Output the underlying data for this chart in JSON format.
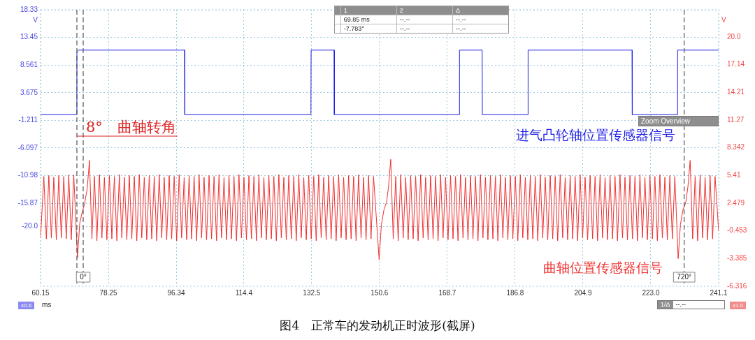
{
  "chart_data": {
    "type": "line",
    "title": "图4　正常车的发动机正时波形(截屏)",
    "xlabel": "ms",
    "ylabel": "V",
    "y2label": "V",
    "xlim": [
      60.15,
      241.1
    ],
    "xticks": [
      60.15,
      78.25,
      96.34,
      114.4,
      132.5,
      150.6,
      168.7,
      186.8,
      204.9,
      {
        "value": 223.0,
        "label": "223.0"
      },
      241.1
    ],
    "ylim": [
      -30.53,
      18.33
    ],
    "yticks": [
      18.33,
      13.45,
      8.561,
      3.675,
      -1.211,
      -6.097,
      -10.98,
      -15.87,
      {
        "value": -20.0,
        "label": "-20.0"
      }
    ],
    "y2lim": [
      -6.316,
      22.93
    ],
    "y2ticks": [
      {
        "value": 20.0,
        "label": "20.0"
      },
      17.14,
      14.21,
      11.27,
      8.342,
      5.41,
      2.479,
      -0.453,
      -3.385,
      -6.316
    ],
    "grid": true,
    "marker": "none",
    "ref_lines": [
      {
        "axis": "x",
        "value": 69.85,
        "label": null,
        "color": "#555555",
        "line_style": "dashed"
      },
      {
        "axis": "x",
        "value": 71.53,
        "label": null,
        "color": "#555555",
        "line_style": "dashed"
      },
      {
        "axis": "x",
        "value": 231.9,
        "label": null,
        "color": "#555555",
        "line_style": "dashed"
      }
    ],
    "annotations": [
      "8°　曲轴转角",
      "1",
      "2",
      "Δ",
      "69.85 ms",
      "--.--",
      "--.--",
      "-7.783°",
      "--.--",
      "--.--",
      "Zoom Overview",
      "x0.6",
      "x1.0",
      "1/Δ",
      "--.--",
      "0°",
      "720°"
    ],
    "series": [
      {
        "name": "进气凸轮轴位置传感器信号",
        "color": "#1f1fe6",
        "x": [
          60.15,
          69.75,
          69.85,
          70.3,
          98.6,
          98.65,
          132.3,
          132.35,
          138.5,
          138.55,
          171.9,
          171.95,
          178.0,
          178.05,
          190.2,
          190.25,
          218.0,
          218.05,
          230.1,
          230.15,
          241.1
        ],
        "values": [
          -0.2,
          -0.2,
          10.9,
          11.2,
          11.2,
          -0.2,
          -0.2,
          11.2,
          11.2,
          -0.2,
          -0.2,
          11.2,
          11.2,
          -0.2,
          -0.2,
          11.2,
          11.2,
          -0.2,
          -0.2,
          11.2,
          11.2
        ]
      },
      {
        "name": "曲轴位置传感器信号",
        "color": "#f03030",
        "axis": "y2",
        "x": [
          60.15,
          61.03,
          61.7,
          62.36,
          63.03,
          63.69,
          64.36,
          65.02,
          65.69,
          66.35,
          67.02,
          67.68,
          68.35,
          69.01,
          70.0,
          70.6,
          71.3,
          71.9,
          72.6,
          73.2,
          73.86,
          74.53,
          75.19,
          75.86,
          76.52,
          77.19,
          77.85,
          78.52,
          79.18,
          79.85,
          80.51,
          81.18,
          81.84,
          82.51,
          83.17,
          83.84,
          84.5,
          85.17,
          85.83,
          86.5,
          87.16,
          87.83,
          88.49,
          89.16,
          89.82,
          90.49,
          91.15,
          91.82,
          92.48,
          93.15,
          93.81,
          94.48,
          95.14,
          95.81,
          96.47,
          97.14,
          97.8,
          98.47,
          99.13,
          99.8,
          100.46,
          101.13,
          101.79,
          102.46,
          103.12,
          103.79,
          104.45,
          105.12,
          105.78,
          106.45,
          107.11,
          107.78,
          108.44,
          109.11,
          109.77,
          110.44,
          111.1,
          111.77,
          112.43,
          113.1,
          113.76,
          114.43,
          115.09,
          115.76,
          116.42,
          117.09,
          117.75,
          118.42,
          119.08,
          119.75,
          120.41,
          121.08,
          121.74,
          122.41,
          123.07,
          123.74,
          124.4,
          125.07,
          125.73,
          126.4,
          127.06,
          127.73,
          128.39,
          129.06,
          129.72,
          130.39,
          131.05,
          131.72,
          132.38,
          133.05,
          133.71,
          134.38,
          135.04,
          135.71,
          136.37,
          137.04,
          137.7,
          138.37,
          139.03,
          139.7,
          140.36,
          141.03,
          141.69,
          142.36,
          143.02,
          143.69,
          144.35,
          145.02,
          145.68,
          146.35,
          147.01,
          147.68,
          148.34,
          149.01,
          150.5,
          151.1,
          151.8,
          152.5,
          153.0,
          153.6,
          154.26,
          154.93,
          155.59,
          156.26,
          156.92,
          157.59,
          158.25,
          158.92,
          159.58,
          160.25,
          160.91,
          161.58,
          162.24,
          162.91,
          163.57,
          164.24,
          164.9,
          165.57,
          166.23,
          166.9,
          167.56,
          168.23,
          168.89,
          169.56,
          170.22,
          170.89,
          171.55,
          172.22,
          172.88,
          173.55,
          174.21,
          174.88,
          175.54,
          176.21,
          176.87,
          177.54,
          178.2,
          178.87,
          179.53,
          180.2,
          180.86,
          181.53,
          182.19,
          182.86,
          183.52,
          184.19,
          184.85,
          185.52,
          186.18,
          186.85,
          187.51,
          188.18,
          188.84,
          189.51,
          190.17,
          190.84,
          191.5,
          192.17,
          192.83,
          193.5,
          194.16,
          194.83,
          195.49,
          196.16,
          196.82,
          197.49,
          198.15,
          198.82,
          199.48,
          200.15,
          200.81,
          201.48,
          202.14,
          202.81,
          203.47,
          204.14,
          204.8,
          205.47,
          206.13,
          206.8,
          207.46,
          208.13,
          208.79,
          209.46,
          210.12,
          210.79,
          211.45,
          212.12,
          212.78,
          213.45,
          214.11,
          214.78,
          215.44,
          216.11,
          216.77,
          217.44,
          218.1,
          218.77,
          219.43,
          220.1,
          220.76,
          221.43,
          222.09,
          222.76,
          223.42,
          224.09,
          224.75,
          225.42,
          226.08,
          226.75,
          227.41,
          228.08,
          228.74,
          229.41,
          230.3,
          230.9,
          231.6,
          232.3,
          232.9,
          233.5,
          234.16,
          234.83,
          235.49,
          236.16,
          236.82,
          237.49,
          238.15,
          238.82,
          239.48,
          240.15,
          241.1
        ],
        "values": [
          -1.2,
          5.3,
          -1.3,
          5.4,
          -1.2,
          5.2,
          -1.4,
          5.4,
          -1.2,
          5.3,
          -1.3,
          5.5,
          -1.4,
          5.5,
          -3.3,
          0.3,
          1.6,
          2.4,
          4.0,
          7.0,
          -1.3,
          5.3,
          -1.5,
          5.5,
          -1.2,
          5.2,
          -1.4,
          5.4,
          -1.3,
          5.3,
          -1.5,
          5.5,
          -1.2,
          5.2,
          -1.4,
          5.4,
          -1.3,
          5.3,
          -1.5,
          5.5,
          -1.2,
          5.2,
          -1.4,
          5.4,
          -1.3,
          5.3,
          -1.5,
          5.5,
          -1.2,
          5.2,
          -1.4,
          5.4,
          -1.3,
          5.3,
          -1.5,
          5.5,
          -1.2,
          5.2,
          -1.4,
          5.4,
          -1.3,
          5.3,
          -1.5,
          5.5,
          -1.2,
          5.2,
          -1.4,
          5.4,
          -1.3,
          5.3,
          -1.5,
          5.5,
          -1.2,
          5.2,
          -1.4,
          5.4,
          -1.3,
          5.3,
          -1.5,
          5.5,
          -1.2,
          5.2,
          -1.4,
          5.4,
          -1.3,
          5.3,
          -1.5,
          5.5,
          -1.2,
          5.2,
          -1.4,
          5.4,
          -1.3,
          5.3,
          -1.5,
          5.5,
          -1.2,
          5.2,
          -1.4,
          5.4,
          -1.3,
          5.3,
          -1.5,
          5.5,
          -1.2,
          5.2,
          -1.4,
          5.4,
          -1.3,
          5.3,
          -1.5,
          5.5,
          -1.2,
          5.2,
          -1.4,
          5.4,
          -1.3,
          5.3,
          -1.5,
          5.5,
          -1.2,
          5.2,
          -1.4,
          5.4,
          -1.3,
          5.3,
          -1.5,
          5.5,
          -1.2,
          5.2,
          -1.4,
          5.4,
          -1.3,
          5.3,
          -3.5,
          0.2,
          1.8,
          2.6,
          4.2,
          7.1,
          -1.3,
          5.3,
          -1.5,
          5.5,
          -1.2,
          5.2,
          -1.4,
          5.4,
          -1.3,
          5.3,
          -1.5,
          5.5,
          -1.2,
          5.2,
          -1.4,
          5.4,
          -1.3,
          5.3,
          -1.5,
          5.5,
          -1.2,
          5.2,
          -1.4,
          5.4,
          -1.3,
          5.3,
          -1.5,
          5.5,
          -1.2,
          5.2,
          -1.4,
          5.4,
          -1.3,
          5.3,
          -1.5,
          5.5,
          -1.2,
          5.2,
          -1.4,
          5.4,
          -1.3,
          5.3,
          -1.5,
          5.5,
          -1.2,
          5.2,
          -1.4,
          5.4,
          -1.3,
          5.3,
          -1.5,
          5.5,
          -1.2,
          5.2,
          -1.4,
          5.4,
          -1.3,
          5.3,
          -1.5,
          5.5,
          -1.2,
          5.2,
          -1.4,
          5.4,
          -1.3,
          5.3,
          -1.5,
          5.5,
          -1.2,
          5.2,
          -1.4,
          5.4,
          -1.3,
          5.3,
          -1.5,
          5.5,
          -1.2,
          5.2,
          -1.4,
          5.4,
          -1.3,
          5.3,
          -1.5,
          5.5,
          -1.2,
          5.2,
          -1.4,
          5.4,
          -1.3,
          5.3,
          -1.5,
          5.5,
          -1.2,
          5.2,
          -1.4,
          5.4,
          -1.3,
          5.3,
          -1.5,
          5.5,
          -1.2,
          5.2,
          -1.4,
          5.4,
          -1.3,
          5.3,
          -1.5,
          5.5,
          -1.2,
          5.2,
          -1.4,
          5.4,
          -1.3,
          5.3,
          -3.4,
          0.2,
          1.8,
          2.5,
          4.2,
          7.0,
          -1.3,
          5.3,
          -1.5,
          5.5,
          -1.2,
          5.2,
          -1.4,
          5.4,
          -1.3,
          5.3,
          -0.5
        ]
      }
    ]
  }
}
